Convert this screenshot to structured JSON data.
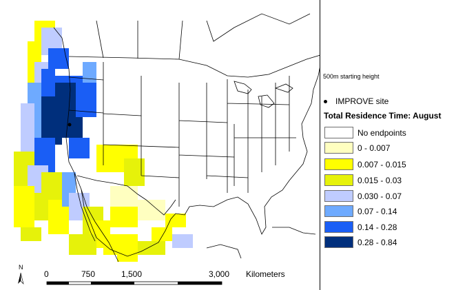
{
  "starting_height": "500m starting height",
  "improve_label": "IMPROVE site",
  "legend": {
    "title": "Total Residence Time: August",
    "items": [
      {
        "label": "No endpoints",
        "color": "#ffffff"
      },
      {
        "label": "0 - 0.007",
        "color": "#ffffc0"
      },
      {
        "label": "0.007 - 0.015",
        "color": "#ffff00"
      },
      {
        "label": "0.015 - 0.03",
        "color": "#e6f20a"
      },
      {
        "label": "0.030 - 0.07",
        "color": "#bfccff"
      },
      {
        "label": "0.07 - 0.14",
        "color": "#6eaaff"
      },
      {
        "label": "0.14 - 0.28",
        "color": "#1a5ef5"
      },
      {
        "label": "0.28 - 0.84",
        "color": "#002f7c"
      }
    ]
  },
  "scale_bar": {
    "ticks": [
      "0",
      "750",
      "1,500",
      "3,000"
    ],
    "unit": "Kilometers"
  },
  "north_arrow": "N",
  "site_marker": {
    "name": "IMPROVE site"
  }
}
